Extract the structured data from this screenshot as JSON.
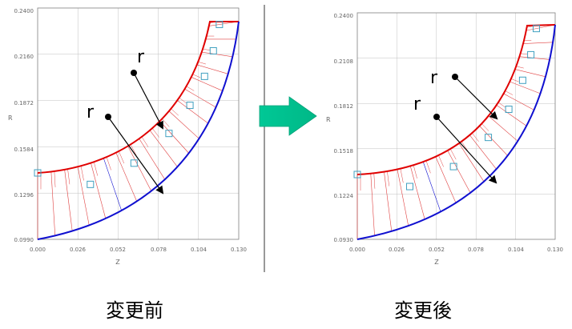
{
  "panels": {
    "before": {
      "caption": "変更前",
      "y_axis_label": "R",
      "x_axis_label": "Z",
      "y_ticks": [
        "0.2400",
        "0.2160",
        "0.1872",
        "0.1584",
        "0.1296",
        "0.0990"
      ],
      "x_ticks": [
        "0.000",
        "0.026",
        "0.052",
        "0.078",
        "0.104",
        "0.130"
      ],
      "arrow_labels": [
        "r",
        "r"
      ]
    },
    "after": {
      "caption": "変更後",
      "y_axis_label": "R",
      "x_axis_label": "Z",
      "y_ticks": [
        "0.2400",
        "0.2108",
        "0.1812",
        "0.1518",
        "0.1224",
        "0.0930"
      ],
      "x_ticks": [
        "0.000",
        "0.026",
        "0.052",
        "0.078",
        "0.104",
        "0.130"
      ],
      "arrow_labels": [
        "r",
        "r"
      ]
    }
  },
  "colors": {
    "inner_curve": "#e00000",
    "outer_curve": "#1010d0",
    "mesh_lines": "#e04040",
    "grid": "#c0c0c0",
    "markers": "#40a0c0",
    "big_arrow": "#00c896"
  }
}
